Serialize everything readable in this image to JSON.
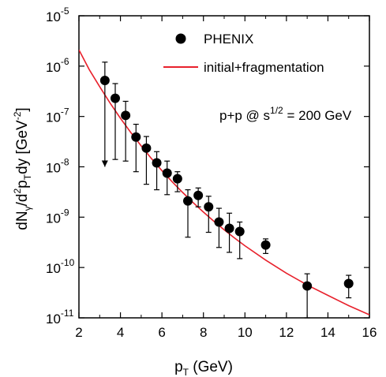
{
  "chart_data": {
    "type": "scatter",
    "x_axis": {
      "label": "p_T (GeV)",
      "range": [
        2,
        16
      ],
      "ticks": [
        2,
        4,
        6,
        8,
        10,
        12,
        14,
        16
      ],
      "tick_labels": [
        "2",
        "4",
        "6",
        "8",
        "10",
        "12",
        "14",
        "16"
      ]
    },
    "y_axis": {
      "label": "dN_γ/d²p_T dy [GeV⁻²]",
      "scale": "log",
      "range": [
        1e-11,
        1e-05
      ],
      "ticks": [
        1e-11,
        1e-10,
        1e-09,
        1e-08,
        1e-07,
        1e-06,
        1e-05
      ],
      "tick_exponents": [
        "-11",
        "-10",
        "-9",
        "-8",
        "-7",
        "-6",
        "-5"
      ]
    },
    "legend": {
      "position": "top-right",
      "entries": [
        {
          "label": "PHENIX",
          "marker": "circle",
          "color": "#000000"
        },
        {
          "label": "initial+fragmentation",
          "marker": "line",
          "color": "#e8212c"
        }
      ]
    },
    "annotation": {
      "text_parts": [
        "p+p @ s",
        "1/2",
        " = 200 GeV"
      ]
    },
    "series": [
      {
        "name": "PHENIX",
        "kind": "points",
        "color": "#000000",
        "points": [
          {
            "x": 3.25,
            "y": 5.2e-07,
            "y_low": 1e-08,
            "y_high": 1.2e-06,
            "upper_limit_arrow": true
          },
          {
            "x": 3.75,
            "y": 2.3e-07,
            "y_low": 1.4e-08,
            "y_high": 4.5e-07
          },
          {
            "x": 4.25,
            "y": 1.05e-07,
            "y_low": 1.3e-08,
            "y_high": 2e-07
          },
          {
            "x": 4.75,
            "y": 3.9e-08,
            "y_low": 8e-09,
            "y_high": 7e-08
          },
          {
            "x": 5.25,
            "y": 2.35e-08,
            "y_low": 4.5e-09,
            "y_high": 4e-08
          },
          {
            "x": 5.75,
            "y": 1.2e-08,
            "y_low": 3.5e-09,
            "y_high": 2e-08
          },
          {
            "x": 6.25,
            "y": 7.5e-09,
            "y_low": 2.8e-09,
            "y_high": 1.3e-08
          },
          {
            "x": 6.75,
            "y": 5.8e-09,
            "y_low": 3.2e-09,
            "y_high": 8e-09
          },
          {
            "x": 7.25,
            "y": 2.1e-09,
            "y_low": 4e-10,
            "y_high": 3.5e-09
          },
          {
            "x": 7.75,
            "y": 2.7e-09,
            "y_low": 1.6e-09,
            "y_high": 3.8e-09
          },
          {
            "x": 8.25,
            "y": 1.6e-09,
            "y_low": 5e-10,
            "y_high": 2.6e-09
          },
          {
            "x": 8.75,
            "y": 8e-10,
            "y_low": 2.5e-10,
            "y_high": 1.5e-09
          },
          {
            "x": 9.25,
            "y": 6e-10,
            "y_low": 2e-10,
            "y_high": 1.2e-09
          },
          {
            "x": 9.75,
            "y": 5.2e-10,
            "y_low": 1.5e-10,
            "y_high": 8e-10
          },
          {
            "x": 11.0,
            "y": 2.8e-10,
            "y_low": 1.9e-10,
            "y_high": 3.7e-10
          },
          {
            "x": 13.0,
            "y": 4.3e-11,
            "y_low": 1e-11,
            "y_high": 7.5e-11
          },
          {
            "x": 15.0,
            "y": 4.8e-11,
            "y_low": 2.5e-11,
            "y_high": 7e-11
          }
        ]
      },
      {
        "name": "initial+fragmentation",
        "kind": "line",
        "color": "#e8212c",
        "x": [
          2,
          2.5,
          3,
          3.5,
          4,
          4.5,
          5,
          5.5,
          6,
          6.5,
          7,
          7.5,
          8,
          8.5,
          9,
          9.5,
          10,
          11,
          12,
          13,
          14,
          15,
          16
        ],
        "y": [
          2.1e-06,
          8.5e-07,
          3.9e-07,
          1.85e-07,
          9.2e-08,
          4.8e-08,
          2.6e-08,
          1.45e-08,
          8.4e-09,
          5e-09,
          3.1e-09,
          1.95e-09,
          1.26e-09,
          8.3e-10,
          5.6e-10,
          3.85e-10,
          2.7e-10,
          1.4e-10,
          7.7e-11,
          4.5e-11,
          2.8e-11,
          1.75e-11,
          1.15e-11
        ]
      }
    ]
  }
}
